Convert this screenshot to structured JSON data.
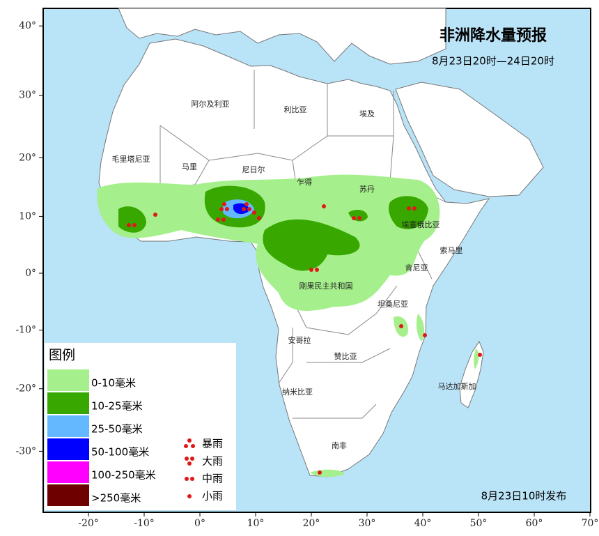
{
  "title": "非洲降水量预报",
  "subtitle": "8月23日20时—24日20时",
  "issued": "8月23日10时发布",
  "legend": {
    "title": "图例",
    "items": [
      {
        "label": "0-10毫米",
        "color": "#a5f08c"
      },
      {
        "label": "10-25毫米",
        "color": "#38a800"
      },
      {
        "label": "25-50毫米",
        "color": "#63b8ff"
      },
      {
        "label": "50-100毫米",
        "color": "#0000ff"
      },
      {
        "label": "100-250毫米",
        "color": "#ff00ff"
      },
      {
        "label": ">250毫米",
        "color": "#6e0000"
      }
    ],
    "symbols": [
      "暴雨",
      "大雨",
      "中雨",
      "小雨"
    ]
  },
  "lon_ticks": [
    {
      "value": -20,
      "label": "-20°"
    },
    {
      "value": -10,
      "label": "-10°"
    },
    {
      "value": 0,
      "label": "0°"
    },
    {
      "value": 10,
      "label": "10°"
    },
    {
      "value": 20,
      "label": "20°"
    },
    {
      "value": 30,
      "label": "30°"
    },
    {
      "value": 40,
      "label": "40°"
    },
    {
      "value": 50,
      "label": "50°"
    },
    {
      "value": 60,
      "label": "60°"
    },
    {
      "value": 70,
      "label": "70°"
    }
  ],
  "lat_ticks": [
    {
      "value": 40,
      "label": "40°"
    },
    {
      "value": 30,
      "label": "30°"
    },
    {
      "value": 20,
      "label": "20°"
    },
    {
      "value": 10,
      "label": "10°"
    },
    {
      "value": 0,
      "label": "0°"
    },
    {
      "value": -10,
      "label": "-10°"
    },
    {
      "value": -20,
      "label": "-20°"
    },
    {
      "value": -30,
      "label": "-30°"
    }
  ],
  "countries": [
    "阿尔及利亚",
    "利比亚",
    "埃及",
    "毛里塔尼亚",
    "马里",
    "尼日尔",
    "乍得",
    "苏丹",
    "埃塞俄比亚",
    "索马里",
    "肯尼亚",
    "刚果民主共和国",
    "坦桑尼亚",
    "安哥拉",
    "赞比亚",
    "纳米比亚",
    "南非",
    "马达加斯加"
  ]
}
